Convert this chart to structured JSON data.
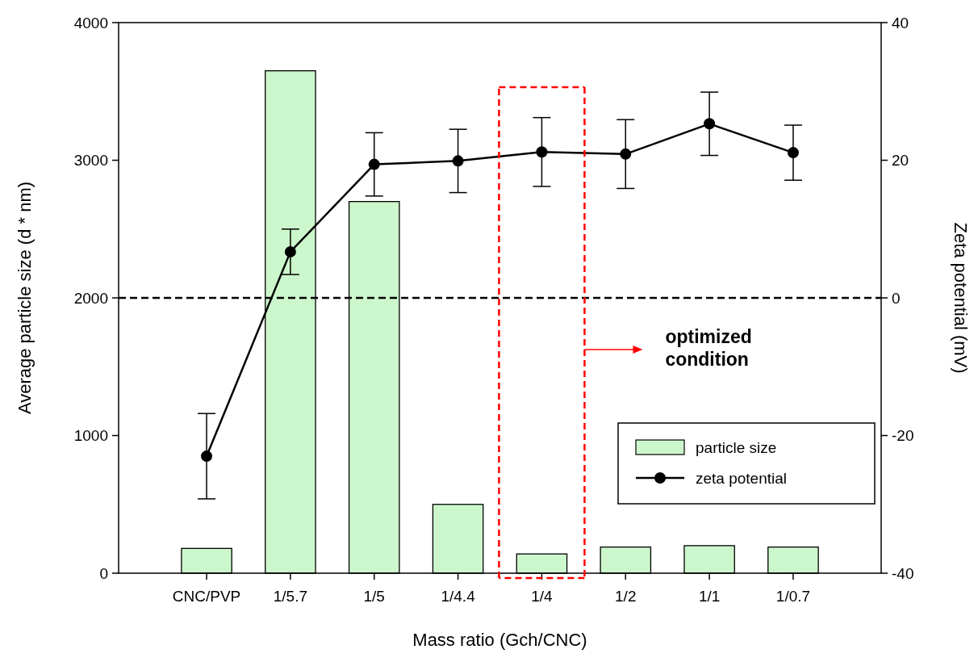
{
  "chart_data": {
    "type": "bar",
    "xlabel": "Mass ratio (Gch/CNC)",
    "ylabel": "Average particle size (d * nm)",
    "y2label": "Zeta potential (mV)",
    "categories": [
      "CNC/PVP",
      "1/5.7",
      "1/5",
      "1/4.4",
      "1/4",
      "1/2",
      "1/1",
      "1/0.7"
    ],
    "series": [
      {
        "name": "particle size",
        "color": "#ccf7cc",
        "values": [
          180,
          3650,
          2700,
          500,
          140,
          190,
          200,
          190
        ]
      },
      {
        "name": "zeta potential",
        "type": "line",
        "axis": "y2",
        "color": "#000000",
        "values": [
          -23,
          6.7,
          19.4,
          19.9,
          21.2,
          20.9,
          25.3,
          21.1
        ],
        "errors": [
          6.2,
          3.3,
          4.6,
          4.6,
          5,
          5,
          4.6,
          4
        ]
      }
    ],
    "ylim": [
      0,
      4000
    ],
    "yticks": [
      0,
      1000,
      2000,
      3000,
      4000
    ],
    "y2lim": [
      -40,
      40
    ],
    "y2ticks": [
      -40,
      -20,
      0,
      20,
      40
    ],
    "ref_lines": [
      {
        "axis": "y2",
        "value": 0,
        "line_style": "dashed",
        "color": "#000000"
      }
    ],
    "annotations": [
      "optimized condition"
    ],
    "legend": "bottom right",
    "marker": "circle",
    "line_style": "solid",
    "grid": false
  }
}
